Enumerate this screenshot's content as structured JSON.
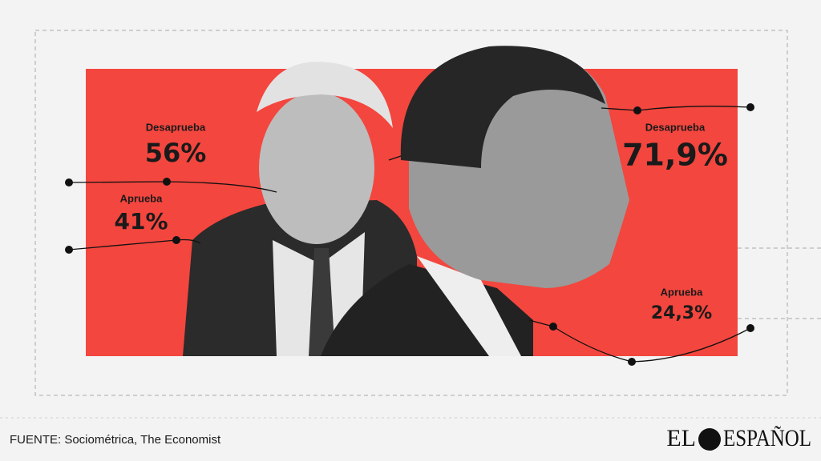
{
  "left": {
    "disapprove": {
      "label": "Desaprueba",
      "value": "56%"
    },
    "approve": {
      "label": "Aprueba",
      "value": "41%"
    }
  },
  "right": {
    "disapprove": {
      "label": "Desaprueba",
      "value": "71,9%"
    },
    "approve": {
      "label": "Aprueba",
      "value": "24,3%"
    }
  },
  "source": "FUENTE: Sociométrica, The Economist",
  "logo": {
    "left": "EL",
    "right": "ESPAÑOL"
  }
}
